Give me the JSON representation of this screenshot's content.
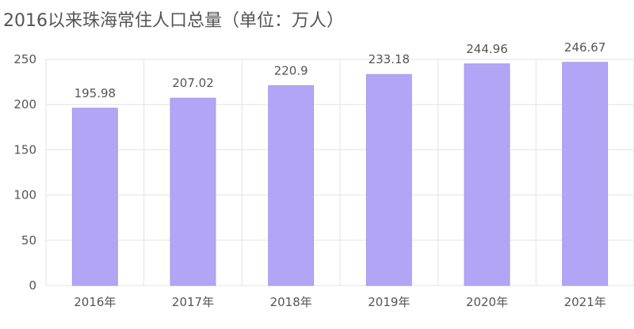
{
  "chart_data": {
    "type": "bar",
    "title": "2016以来珠海常住人口总量（单位：万人）",
    "categories": [
      "2016年",
      "2017年",
      "2018年",
      "2019年",
      "2020年",
      "2021年"
    ],
    "values": [
      195.98,
      207.02,
      220.9,
      233.18,
      244.96,
      246.67
    ],
    "data_labels": [
      "195.98",
      "207.02",
      "220.9",
      "233.18",
      "244.96",
      "246.67"
    ],
    "yticks": [
      "0",
      "50",
      "100",
      "150",
      "200",
      "250"
    ],
    "ylim": [
      0,
      250
    ],
    "xlabel": "",
    "ylabel": "",
    "grid": true,
    "colors": {
      "bar": "#b3a5f5",
      "bar_stroke": "#a896f0",
      "grid": "#e3e3e3",
      "text": "#555555"
    }
  }
}
